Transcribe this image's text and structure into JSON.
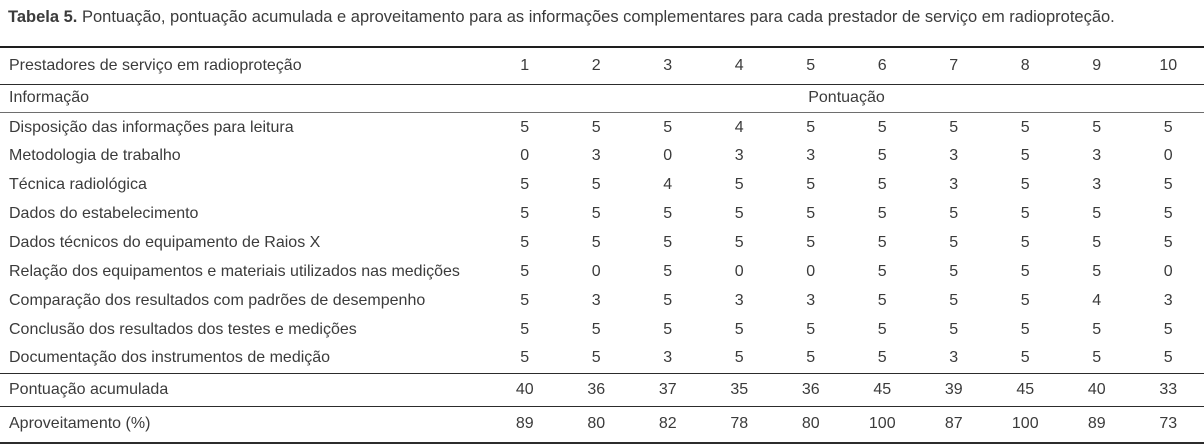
{
  "title": {
    "label": "Tabela 5.",
    "text": " Pontuação, pontuação acumulada e aproveitamento para as informações complementares para cada prestador de serviço em radioproteção."
  },
  "table": {
    "header": {
      "col_label": "Prestadores de serviço em radioproteção",
      "provider_numbers": [
        "1",
        "2",
        "3",
        "4",
        "5",
        "6",
        "7",
        "8",
        "9",
        "10"
      ],
      "info_label": "Informação",
      "score_label": "Pontuação"
    },
    "rows": [
      {
        "label": "Disposição das informações para leitura",
        "values": [
          5,
          5,
          5,
          4,
          5,
          5,
          5,
          5,
          5,
          5
        ]
      },
      {
        "label": "Metodologia de trabalho",
        "values": [
          0,
          3,
          0,
          3,
          3,
          5,
          3,
          5,
          3,
          0
        ]
      },
      {
        "label": "Técnica radiológica",
        "values": [
          5,
          5,
          4,
          5,
          5,
          5,
          3,
          5,
          3,
          5
        ]
      },
      {
        "label": "Dados do estabelecimento",
        "values": [
          5,
          5,
          5,
          5,
          5,
          5,
          5,
          5,
          5,
          5
        ]
      },
      {
        "label": "Dados técnicos do equipamento de Raios X",
        "values": [
          5,
          5,
          5,
          5,
          5,
          5,
          5,
          5,
          5,
          5
        ]
      },
      {
        "label": "Relação dos equipamentos e materiais utilizados nas medições",
        "values": [
          5,
          0,
          5,
          0,
          0,
          5,
          5,
          5,
          5,
          0
        ]
      },
      {
        "label": "Comparação dos resultados com padrões de desempenho",
        "values": [
          5,
          3,
          5,
          3,
          3,
          5,
          5,
          5,
          4,
          3
        ]
      },
      {
        "label": "Conclusão dos resultados dos testes e medições",
        "values": [
          5,
          5,
          5,
          5,
          5,
          5,
          5,
          5,
          5,
          5
        ]
      },
      {
        "label": "Documentação dos instrumentos de medição",
        "values": [
          5,
          5,
          3,
          5,
          5,
          5,
          3,
          5,
          5,
          5
        ]
      }
    ],
    "summary_rows": [
      {
        "label": "Pontuação acumulada",
        "values": [
          40,
          36,
          37,
          35,
          36,
          45,
          39,
          45,
          40,
          33
        ]
      },
      {
        "label": "Aproveitamento (%)",
        "values": [
          89,
          80,
          82,
          78,
          80,
          100,
          87,
          100,
          89,
          73
        ]
      }
    ]
  },
  "colors": {
    "text": "#3b3b3b",
    "rule_heavy": "#1e1e1e",
    "rule_medium": "#2c2c2c",
    "rule_light": "#6e6e6e"
  },
  "chart_data": {
    "type": "table",
    "title": "Tabela 5. Pontuação, pontuação acumulada e aproveitamento para as informações complementares para cada prestador de serviço em radioproteção.",
    "columns": [
      "Informação",
      "1",
      "2",
      "3",
      "4",
      "5",
      "6",
      "7",
      "8",
      "9",
      "10"
    ],
    "rows": [
      [
        "Disposição das informações para leitura",
        5,
        5,
        5,
        4,
        5,
        5,
        5,
        5,
        5,
        5
      ],
      [
        "Metodologia de trabalho",
        0,
        3,
        0,
        3,
        3,
        5,
        3,
        5,
        3,
        0
      ],
      [
        "Técnica radiológica",
        5,
        5,
        4,
        5,
        5,
        5,
        3,
        5,
        3,
        5
      ],
      [
        "Dados do estabelecimento",
        5,
        5,
        5,
        5,
        5,
        5,
        5,
        5,
        5,
        5
      ],
      [
        "Dados técnicos do equipamento de Raios X",
        5,
        5,
        5,
        5,
        5,
        5,
        5,
        5,
        5,
        5
      ],
      [
        "Relação dos equipamentos e materiais utilizados nas medições",
        5,
        0,
        5,
        0,
        0,
        5,
        5,
        5,
        5,
        0
      ],
      [
        "Comparação dos resultados com padrões de desempenho",
        5,
        3,
        5,
        3,
        3,
        5,
        5,
        5,
        4,
        3
      ],
      [
        "Conclusão dos resultados dos testes e medições",
        5,
        5,
        5,
        5,
        5,
        5,
        5,
        5,
        5,
        5
      ],
      [
        "Documentação dos instrumentos de medição",
        5,
        5,
        3,
        5,
        5,
        5,
        3,
        5,
        5,
        5
      ],
      [
        "Pontuação acumulada",
        40,
        36,
        37,
        35,
        36,
        45,
        39,
        45,
        40,
        33
      ],
      [
        "Aproveitamento (%)",
        89,
        80,
        82,
        78,
        80,
        100,
        87,
        100,
        89,
        73
      ]
    ]
  }
}
